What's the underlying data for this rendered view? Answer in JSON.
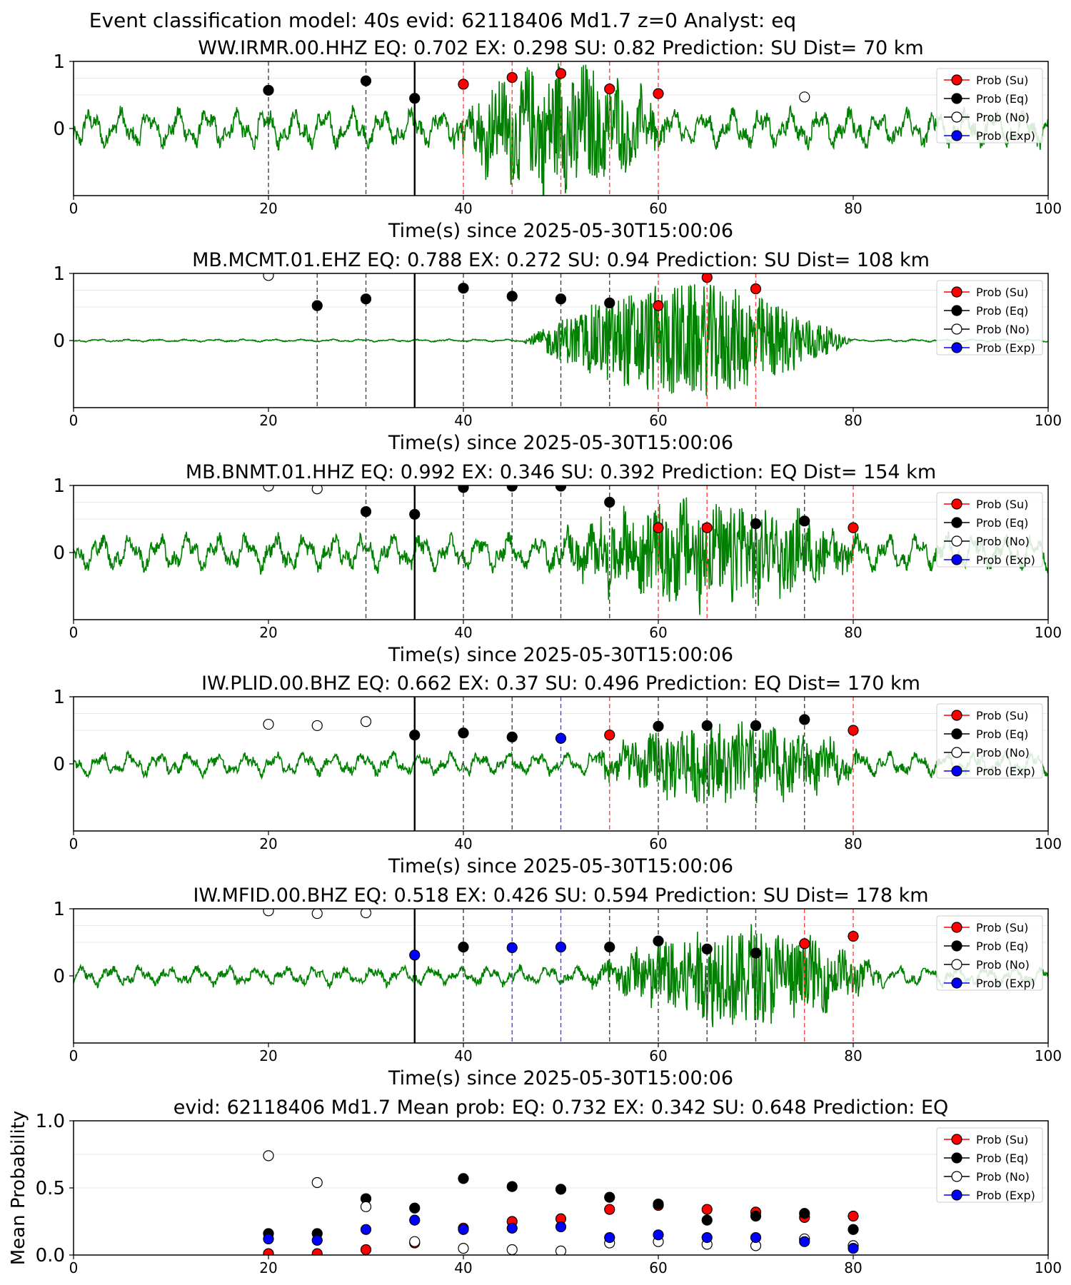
{
  "figure_title": "Event classification model: 40s evid: 62118406 Md1.7 z=0 Analyst: eq",
  "xlabel": "Time(s) since 2025-05-30T15:00:06",
  "legend": [
    "Prob (Su)",
    "Prob (Eq)",
    "Prob (No)",
    "Prob (Exp)"
  ],
  "colors": {
    "Su": "#ff0000",
    "Eq": "#000000",
    "No": "#ffffff",
    "Exp": "#0000ff",
    "waveform": "#008000",
    "ref_line": "#000000"
  },
  "chart_data": [
    {
      "type": "line",
      "title": "WW.IRMR.00.HHZ   EQ: 0.702  EX: 0.298  SU: 0.82   Prediction: SU    Dist= 70 km",
      "xlim": [
        0,
        100
      ],
      "ylim": [
        -1,
        1
      ],
      "xticks": [
        0,
        20,
        40,
        60,
        80,
        100
      ],
      "yticks": [
        0,
        1
      ],
      "reference_time": 35,
      "waveform": {
        "amplitude": 0.3,
        "burst": [
          38,
          62,
          0.85
        ]
      },
      "points": [
        {
          "x": 20,
          "y": 0.57,
          "cls": "Eq"
        },
        {
          "x": 30,
          "y": 0.71,
          "cls": "Eq"
        },
        {
          "x": 35,
          "y": 0.45,
          "cls": "Eq"
        },
        {
          "x": 40,
          "y": 0.66,
          "cls": "Su"
        },
        {
          "x": 45,
          "y": 0.76,
          "cls": "Su"
        },
        {
          "x": 50,
          "y": 0.82,
          "cls": "Su"
        },
        {
          "x": 55,
          "y": 0.59,
          "cls": "Su"
        },
        {
          "x": 60,
          "y": 0.52,
          "cls": "Su"
        },
        {
          "x": 75,
          "y": 0.47,
          "cls": "No"
        }
      ],
      "vlines": [
        {
          "x": 20,
          "cls": "Eq"
        },
        {
          "x": 30,
          "cls": "Eq"
        },
        {
          "x": 40,
          "cls": "Su"
        },
        {
          "x": 45,
          "cls": "Su"
        },
        {
          "x": 50,
          "cls": "Su"
        },
        {
          "x": 55,
          "cls": "Su"
        },
        {
          "x": 60,
          "cls": "Su"
        }
      ]
    },
    {
      "type": "line",
      "title": "MB.MCMT.01.EHZ   EQ: 0.788  EX: 0.272  SU: 0.94   Prediction: SU    Dist= 108 km",
      "xlim": [
        0,
        100
      ],
      "ylim": [
        -1,
        1
      ],
      "xticks": [
        0,
        20,
        40,
        60,
        80,
        100
      ],
      "yticks": [
        0,
        1
      ],
      "reference_time": 35,
      "waveform": {
        "amplitude": 0.02,
        "burst": [
          46,
          80,
          0.85
        ]
      },
      "points": [
        {
          "x": 20,
          "y": 0.97,
          "cls": "No"
        },
        {
          "x": 25,
          "y": 0.52,
          "cls": "Eq"
        },
        {
          "x": 30,
          "y": 0.62,
          "cls": "Eq"
        },
        {
          "x": 40,
          "y": 0.78,
          "cls": "Eq"
        },
        {
          "x": 45,
          "y": 0.66,
          "cls": "Eq"
        },
        {
          "x": 50,
          "y": 0.62,
          "cls": "Eq"
        },
        {
          "x": 55,
          "y": 0.56,
          "cls": "Eq"
        },
        {
          "x": 60,
          "y": 0.52,
          "cls": "Su"
        },
        {
          "x": 65,
          "y": 0.94,
          "cls": "Su"
        },
        {
          "x": 70,
          "y": 0.77,
          "cls": "Su"
        }
      ],
      "vlines": [
        {
          "x": 25,
          "cls": "Eq"
        },
        {
          "x": 30,
          "cls": "Eq"
        },
        {
          "x": 40,
          "cls": "Eq"
        },
        {
          "x": 45,
          "cls": "Eq"
        },
        {
          "x": 50,
          "cls": "Eq"
        },
        {
          "x": 55,
          "cls": "Eq"
        },
        {
          "x": 60,
          "cls": "Su"
        },
        {
          "x": 65,
          "cls": "Su"
        },
        {
          "x": 70,
          "cls": "Su"
        }
      ]
    },
    {
      "type": "line",
      "title": "MB.BNMT.01.HHZ   EQ: 0.992  EX: 0.346  SU: 0.392   Prediction: EQ    Dist= 154 km",
      "xlim": [
        0,
        100
      ],
      "ylim": [
        -1,
        1
      ],
      "xticks": [
        0,
        20,
        40,
        60,
        80,
        100
      ],
      "yticks": [
        0,
        1
      ],
      "reference_time": 35,
      "waveform": {
        "amplitude": 0.28,
        "burst": [
          48,
          82,
          0.7
        ]
      },
      "points": [
        {
          "x": 20,
          "y": 0.99,
          "cls": "No"
        },
        {
          "x": 25,
          "y": 0.95,
          "cls": "No"
        },
        {
          "x": 30,
          "y": 0.61,
          "cls": "Eq"
        },
        {
          "x": 35,
          "y": 0.57,
          "cls": "Eq"
        },
        {
          "x": 40,
          "y": 0.97,
          "cls": "Eq"
        },
        {
          "x": 45,
          "y": 0.99,
          "cls": "Eq"
        },
        {
          "x": 50,
          "y": 0.99,
          "cls": "Eq"
        },
        {
          "x": 55,
          "y": 0.75,
          "cls": "Eq"
        },
        {
          "x": 60,
          "y": 0.37,
          "cls": "Su"
        },
        {
          "x": 65,
          "y": 0.37,
          "cls": "Su"
        },
        {
          "x": 70,
          "y": 0.43,
          "cls": "Eq"
        },
        {
          "x": 75,
          "y": 0.47,
          "cls": "Eq"
        },
        {
          "x": 80,
          "y": 0.37,
          "cls": "Su"
        }
      ],
      "vlines": [
        {
          "x": 30,
          "cls": "Eq"
        },
        {
          "x": 40,
          "cls": "Eq"
        },
        {
          "x": 45,
          "cls": "Eq"
        },
        {
          "x": 50,
          "cls": "Eq"
        },
        {
          "x": 55,
          "cls": "Eq"
        },
        {
          "x": 60,
          "cls": "Su"
        },
        {
          "x": 65,
          "cls": "Su"
        },
        {
          "x": 70,
          "cls": "Eq"
        },
        {
          "x": 75,
          "cls": "Eq"
        },
        {
          "x": 80,
          "cls": "Su"
        }
      ]
    },
    {
      "type": "line",
      "title": "IW.PLID.00.BHZ   EQ: 0.662  EX: 0.37  SU: 0.496   Prediction: EQ    Dist= 170 km",
      "xlim": [
        0,
        100
      ],
      "ylim": [
        -1,
        1
      ],
      "xticks": [
        0,
        20,
        40,
        60,
        80,
        100
      ],
      "yticks": [
        0,
        1
      ],
      "reference_time": 35,
      "waveform": {
        "amplitude": 0.18,
        "burst": [
          52,
          82,
          0.55
        ]
      },
      "points": [
        {
          "x": 20,
          "y": 0.59,
          "cls": "No"
        },
        {
          "x": 25,
          "y": 0.57,
          "cls": "No"
        },
        {
          "x": 30,
          "y": 0.63,
          "cls": "No"
        },
        {
          "x": 35,
          "y": 0.43,
          "cls": "Eq"
        },
        {
          "x": 40,
          "y": 0.46,
          "cls": "Eq"
        },
        {
          "x": 45,
          "y": 0.4,
          "cls": "Eq"
        },
        {
          "x": 50,
          "y": 0.38,
          "cls": "Exp"
        },
        {
          "x": 55,
          "y": 0.43,
          "cls": "Su"
        },
        {
          "x": 60,
          "y": 0.56,
          "cls": "Eq"
        },
        {
          "x": 65,
          "y": 0.57,
          "cls": "Eq"
        },
        {
          "x": 70,
          "y": 0.57,
          "cls": "Eq"
        },
        {
          "x": 75,
          "y": 0.66,
          "cls": "Eq"
        },
        {
          "x": 80,
          "y": 0.5,
          "cls": "Su"
        }
      ],
      "vlines": [
        {
          "x": 40,
          "cls": "Eq"
        },
        {
          "x": 45,
          "cls": "Eq"
        },
        {
          "x": 50,
          "cls": "Exp"
        },
        {
          "x": 55,
          "cls": "Su"
        },
        {
          "x": 60,
          "cls": "Eq"
        },
        {
          "x": 65,
          "cls": "Eq"
        },
        {
          "x": 70,
          "cls": "Eq"
        },
        {
          "x": 75,
          "cls": "Eq"
        },
        {
          "x": 80,
          "cls": "Su"
        }
      ]
    },
    {
      "type": "line",
      "title": "IW.MFID.00.BHZ   EQ: 0.518  EX: 0.426  SU: 0.594   Prediction: SU    Dist= 178 km",
      "xlim": [
        0,
        100
      ],
      "ylim": [
        -1,
        1
      ],
      "xticks": [
        0,
        20,
        40,
        60,
        80,
        100
      ],
      "yticks": [
        0,
        1
      ],
      "reference_time": 35,
      "waveform": {
        "amplitude": 0.15,
        "burst": [
          52,
          84,
          0.7
        ]
      },
      "points": [
        {
          "x": 20,
          "y": 0.97,
          "cls": "No"
        },
        {
          "x": 25,
          "y": 0.93,
          "cls": "No"
        },
        {
          "x": 30,
          "y": 0.94,
          "cls": "No"
        },
        {
          "x": 35,
          "y": 0.31,
          "cls": "Exp"
        },
        {
          "x": 40,
          "y": 0.43,
          "cls": "Eq"
        },
        {
          "x": 45,
          "y": 0.42,
          "cls": "Exp"
        },
        {
          "x": 50,
          "y": 0.43,
          "cls": "Exp"
        },
        {
          "x": 55,
          "y": 0.43,
          "cls": "Eq"
        },
        {
          "x": 60,
          "y": 0.52,
          "cls": "Eq"
        },
        {
          "x": 65,
          "y": 0.4,
          "cls": "Eq"
        },
        {
          "x": 70,
          "y": 0.34,
          "cls": "Eq"
        },
        {
          "x": 75,
          "y": 0.48,
          "cls": "Su"
        },
        {
          "x": 80,
          "y": 0.59,
          "cls": "Su"
        }
      ],
      "vlines": [
        {
          "x": 40,
          "cls": "Eq"
        },
        {
          "x": 45,
          "cls": "Exp"
        },
        {
          "x": 50,
          "cls": "Exp"
        },
        {
          "x": 55,
          "cls": "Eq"
        },
        {
          "x": 60,
          "cls": "Eq"
        },
        {
          "x": 65,
          "cls": "Eq"
        },
        {
          "x": 70,
          "cls": "Eq"
        },
        {
          "x": 75,
          "cls": "Su"
        },
        {
          "x": 80,
          "cls": "Su"
        }
      ]
    },
    {
      "type": "scatter",
      "title": "evid: 62118406  Md1.7   Mean prob:   EQ: 0.732  EX: 0.342  SU: 0.648   Prediction: EQ",
      "ylabel": "Mean Probability",
      "xlim": [
        0,
        100
      ],
      "ylim": [
        0,
        1
      ],
      "xticks": [
        0,
        20,
        40,
        60,
        80,
        100
      ],
      "yticks": [
        0.0,
        0.5,
        1.0
      ],
      "ytick_labels": [
        "0.0",
        "0.5",
        "1.0"
      ],
      "x": [
        20,
        25,
        30,
        35,
        40,
        45,
        50,
        55,
        60,
        65,
        70,
        75,
        80
      ],
      "series": [
        {
          "name": "Prob (Su)",
          "cls": "Su",
          "values": [
            0.01,
            0.01,
            0.04,
            0.09,
            0.2,
            0.25,
            0.27,
            0.34,
            0.37,
            0.34,
            0.32,
            0.28,
            0.29
          ]
        },
        {
          "name": "Prob (Eq)",
          "cls": "Eq",
          "values": [
            0.16,
            0.16,
            0.42,
            0.35,
            0.57,
            0.51,
            0.49,
            0.43,
            0.38,
            0.26,
            0.29,
            0.31,
            0.19
          ]
        },
        {
          "name": "Prob (No)",
          "cls": "No",
          "values": [
            0.74,
            0.54,
            0.36,
            0.1,
            0.05,
            0.04,
            0.03,
            0.09,
            0.1,
            0.08,
            0.07,
            0.12,
            0.07
          ]
        },
        {
          "name": "Prob (Exp)",
          "cls": "Exp",
          "values": [
            0.12,
            0.11,
            0.19,
            0.26,
            0.19,
            0.2,
            0.21,
            0.13,
            0.15,
            0.13,
            0.13,
            0.1,
            0.05
          ]
        }
      ]
    }
  ]
}
